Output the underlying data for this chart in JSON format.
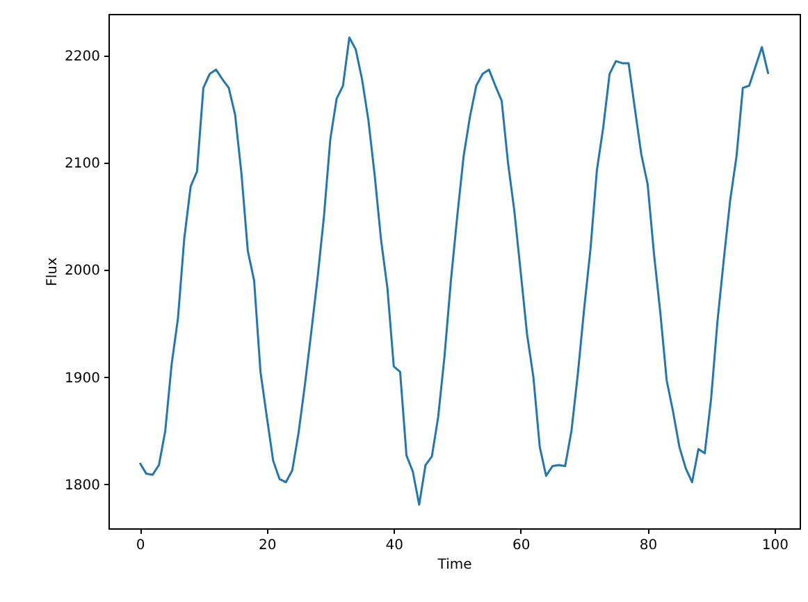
{
  "chart_data": {
    "type": "line",
    "xlabel": "Time",
    "ylabel": "Flux",
    "x": [
      0,
      1,
      2,
      3,
      4,
      5,
      6,
      7,
      8,
      9,
      10,
      11,
      12,
      13,
      14,
      15,
      16,
      17,
      18,
      19,
      20,
      21,
      22,
      23,
      24,
      25,
      26,
      27,
      28,
      29,
      30,
      31,
      32,
      33,
      34,
      35,
      36,
      37,
      38,
      39,
      40,
      41,
      42,
      43,
      44,
      45,
      46,
      47,
      48,
      49,
      50,
      51,
      52,
      53,
      54,
      55,
      56,
      57,
      58,
      59,
      60,
      61,
      62,
      63,
      64,
      65,
      66,
      67,
      68,
      69,
      70,
      71,
      72,
      73,
      74,
      75,
      76,
      77,
      78,
      79,
      80,
      81,
      82,
      83,
      84,
      85,
      86,
      87,
      88,
      89,
      90,
      91,
      92,
      93,
      94,
      95,
      96,
      97,
      98,
      99
    ],
    "series": [
      {
        "color": "#1f77b4",
        "values": [
          1820,
          1810,
          1809,
          1818,
          1850,
          1912,
          1955,
          2030,
          2078,
          2092,
          2170,
          2183,
          2187,
          2178,
          2170,
          2145,
          2090,
          2018,
          1990,
          1905,
          1863,
          1822,
          1805,
          1802,
          1813,
          1848,
          1893,
          1942,
          1993,
          2050,
          2122,
          2160,
          2172,
          2217,
          2206,
          2178,
          2140,
          2088,
          2028,
          1983,
          1910,
          1905,
          1827,
          1812,
          1781,
          1818,
          1826,
          1863,
          1920,
          1990,
          2050,
          2106,
          2143,
          2172,
          2183,
          2187,
          2172,
          2158,
          2100,
          2055,
          1998,
          1940,
          1900,
          1835,
          1808,
          1817,
          1818,
          1817,
          1850,
          1903,
          1964,
          2020,
          2093,
          2133,
          2183,
          2195,
          2193,
          2193,
          2150,
          2108,
          2080,
          2015,
          1960,
          1897,
          1868,
          1835,
          1815,
          1802,
          1833,
          1829,
          1880,
          1952,
          2010,
          2065,
          2106,
          2170,
          2172,
          2190,
          2208,
          2183
        ]
      }
    ],
    "xlim": [
      -4.95,
      103.95
    ],
    "ylim": [
      1759,
      2239
    ],
    "xticks": [
      0,
      20,
      40,
      60,
      80,
      100
    ],
    "yticks": [
      1800,
      1900,
      2000,
      2100,
      2200
    ],
    "grid": false,
    "marker": "none",
    "line_style": "solid"
  }
}
